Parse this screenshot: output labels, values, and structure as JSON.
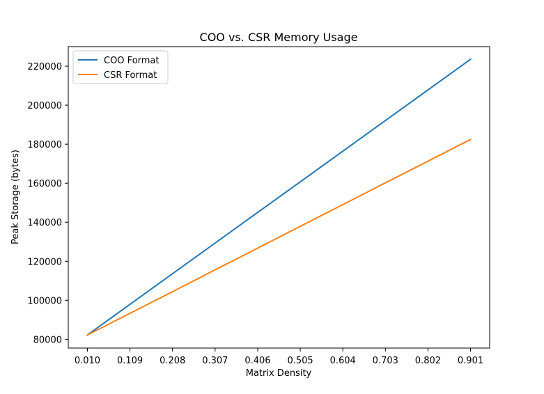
{
  "chart_data": {
    "type": "line",
    "title": "COO vs. CSR Memory Usage",
    "xlabel": "Matrix Density",
    "ylabel": "Peak Storage (bytes)",
    "x": [
      0.01,
      0.109,
      0.208,
      0.307,
      0.406,
      0.505,
      0.604,
      0.703,
      0.802,
      0.901
    ],
    "x_tick_labels": [
      "0.010",
      "0.109",
      "0.208",
      "0.307",
      "0.406",
      "0.505",
      "0.604",
      "0.703",
      "0.802",
      "0.901"
    ],
    "y_ticks": [
      80000,
      100000,
      120000,
      140000,
      160000,
      180000,
      200000,
      220000
    ],
    "y_tick_labels": [
      "80000",
      "100000",
      "120000",
      "140000",
      "160000",
      "180000",
      "200000",
      "220000"
    ],
    "xlim": [
      -0.0345,
      0.9455
    ],
    "ylim": [
      75500,
      230000
    ],
    "grid": false,
    "legend_position": "upper left",
    "series": [
      {
        "name": "COO Format",
        "color": "#1f77b4",
        "values": [
          82200,
          97900,
          113600,
          129300,
          145000,
          160700,
          176400,
          192100,
          207800,
          223500
        ]
      },
      {
        "name": "CSR Format",
        "color": "#ff7f0e",
        "values": [
          82200,
          93300,
          104400,
          115600,
          126700,
          137900,
          149000,
          160200,
          171300,
          182400
        ]
      }
    ]
  }
}
